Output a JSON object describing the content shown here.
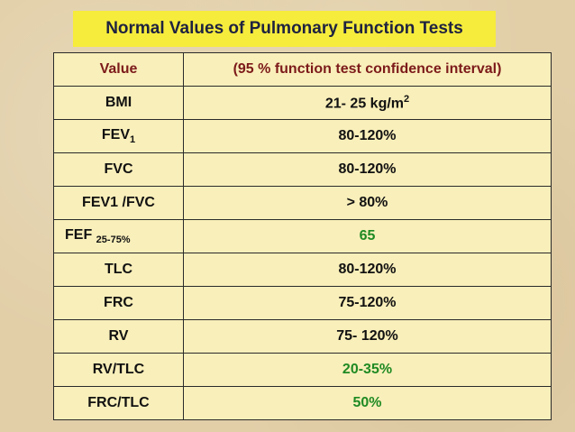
{
  "title": "Normal Values of Pulmonary Function Tests",
  "table": {
    "header": {
      "col1": "Value",
      "col2": "(95 % function test confidence interval)"
    },
    "rows": [
      {
        "name": "BMI",
        "value": "21- 25 kg/m",
        "value_sup": "2"
      },
      {
        "name": "FEV",
        "name_sub": "1",
        "value": "80-120%"
      },
      {
        "name": "FVC",
        "value": "80-120%"
      },
      {
        "name": "FEV1 /FVC",
        "value": "> 80%"
      },
      {
        "name": "FEF",
        "name_sub": "25-75%",
        "value": "65",
        "value_color": "#1f8a23"
      },
      {
        "name": "TLC",
        "value": "80-120%"
      },
      {
        "name": "FRC",
        "value": "75-120%"
      },
      {
        "name": "RV",
        "value": "75- 120%"
      },
      {
        "name": "RV/TLC",
        "value": "20-35%",
        "value_color": "#1f8a23"
      },
      {
        "name": "FRC/TLC",
        "value": "50%",
        "value_color": "#1f8a23"
      }
    ]
  },
  "colors": {
    "title_background": "#f6ec3c",
    "title_text": "#1e2240",
    "header_text": "#7c1a1a",
    "table_background": "#f9efba",
    "highlight_green": "#1f8a23"
  }
}
